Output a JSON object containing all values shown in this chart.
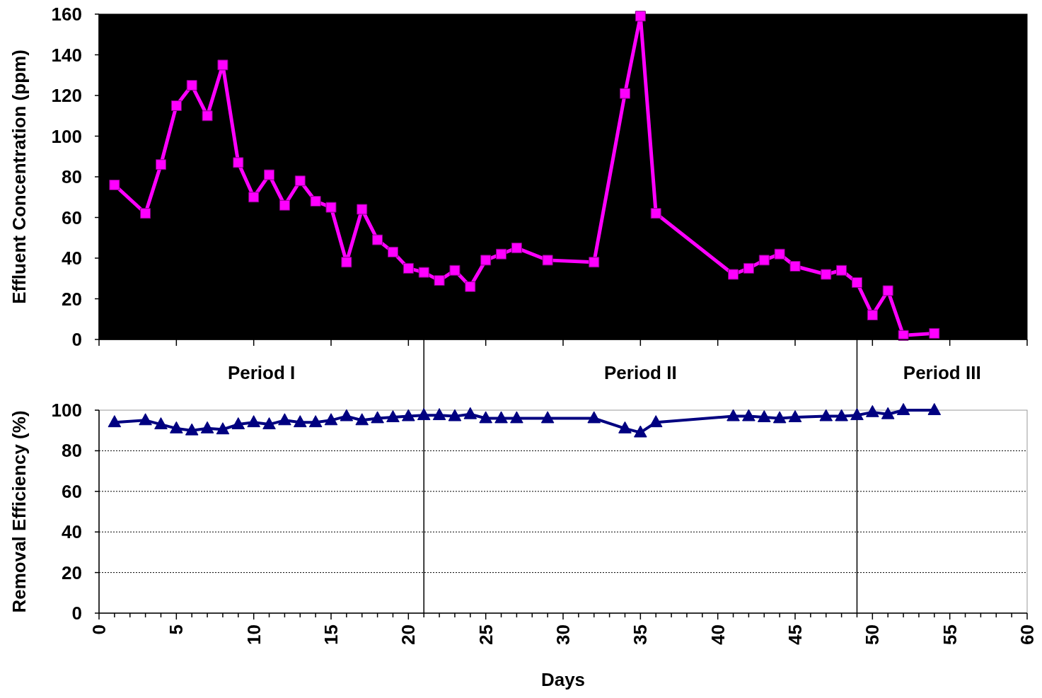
{
  "chart_data": [
    {
      "type": "line",
      "ylabel": "Effluent Concentration (ppm)",
      "marker": "square",
      "line_style": "solid",
      "grid": false,
      "tick_labels": "y",
      "xlim": [
        0,
        60
      ],
      "ylim": [
        0,
        160
      ],
      "xticks": [
        {
          "value": 0,
          "label": null
        },
        {
          "value": 5,
          "label": null
        },
        {
          "value": 10,
          "label": null
        },
        {
          "value": 15,
          "label": null
        },
        {
          "value": 20,
          "label": null
        },
        {
          "value": 25,
          "label": null
        },
        {
          "value": 30,
          "label": null
        },
        {
          "value": 35,
          "label": null
        },
        {
          "value": 40,
          "label": null
        },
        {
          "value": 45,
          "label": null
        },
        {
          "value": 50,
          "label": null
        },
        {
          "value": 55,
          "label": null
        },
        {
          "value": 60,
          "label": null
        }
      ],
      "yticks": [
        0,
        20,
        40,
        60,
        80,
        100,
        120,
        140,
        160
      ],
      "series": [
        {
          "color": "#ff00ff",
          "x": [
            1,
            3,
            4,
            5,
            6,
            7,
            8,
            9,
            10,
            11,
            12,
            13,
            14,
            15,
            16,
            17,
            18,
            19,
            20,
            21,
            22,
            23,
            24,
            25,
            26,
            27,
            29,
            32,
            34,
            35,
            36,
            41,
            42,
            43,
            44,
            45,
            47,
            48,
            49,
            50,
            51,
            52,
            54
          ],
          "values": [
            76,
            62,
            86,
            115,
            125,
            110,
            135,
            87,
            70,
            81,
            66,
            78,
            68,
            65,
            38,
            64,
            49,
            43,
            35,
            33,
            29,
            34,
            26,
            39,
            42,
            45,
            39,
            38,
            121,
            159,
            62,
            32,
            35,
            39,
            42,
            36,
            32,
            34,
            28,
            12,
            24,
            2,
            3
          ]
        }
      ]
    },
    {
      "type": "line",
      "ylabel": "Removal Efficiency (%)",
      "xlabel": "Days",
      "marker": "triangle",
      "line_style": "solid",
      "grid": "y",
      "xlim": [
        0,
        60
      ],
      "ylim": [
        0,
        100
      ],
      "xticks": [
        0,
        {
          "value": 1,
          "label": null
        },
        {
          "value": 2,
          "label": null
        },
        {
          "value": 3,
          "label": null
        },
        {
          "value": 4,
          "label": null
        },
        5,
        {
          "value": 6,
          "label": null
        },
        {
          "value": 7,
          "label": null
        },
        {
          "value": 8,
          "label": null
        },
        {
          "value": 9,
          "label": null
        },
        10,
        {
          "value": 11,
          "label": null
        },
        {
          "value": 12,
          "label": null
        },
        {
          "value": 13,
          "label": null
        },
        {
          "value": 14,
          "label": null
        },
        15,
        {
          "value": 16,
          "label": null
        },
        {
          "value": 17,
          "label": null
        },
        {
          "value": 18,
          "label": null
        },
        {
          "value": 19,
          "label": null
        },
        20,
        {
          "value": 21,
          "label": null
        },
        {
          "value": 22,
          "label": null
        },
        {
          "value": 23,
          "label": null
        },
        {
          "value": 24,
          "label": null
        },
        25,
        {
          "value": 26,
          "label": null
        },
        {
          "value": 27,
          "label": null
        },
        {
          "value": 28,
          "label": null
        },
        {
          "value": 29,
          "label": null
        },
        30,
        {
          "value": 31,
          "label": null
        },
        {
          "value": 32,
          "label": null
        },
        {
          "value": 33,
          "label": null
        },
        {
          "value": 34,
          "label": null
        },
        35,
        {
          "value": 36,
          "label": null
        },
        {
          "value": 37,
          "label": null
        },
        {
          "value": 38,
          "label": null
        },
        {
          "value": 39,
          "label": null
        },
        40,
        {
          "value": 41,
          "label": null
        },
        {
          "value": 42,
          "label": null
        },
        {
          "value": 43,
          "label": null
        },
        {
          "value": 44,
          "label": null
        },
        45,
        {
          "value": 46,
          "label": null
        },
        {
          "value": 47,
          "label": null
        },
        {
          "value": 48,
          "label": null
        },
        {
          "value": 49,
          "label": null
        },
        50,
        {
          "value": 51,
          "label": null
        },
        {
          "value": 52,
          "label": null
        },
        {
          "value": 53,
          "label": null
        },
        {
          "value": 54,
          "label": null
        },
        55,
        {
          "value": 56,
          "label": null
        },
        {
          "value": 57,
          "label": null
        },
        {
          "value": 58,
          "label": null
        },
        {
          "value": 59,
          "label": null
        },
        60
      ],
      "yticks": [
        0,
        20,
        40,
        60,
        80,
        100
      ],
      "ref_lines": [
        {
          "axis": "x",
          "value": 21,
          "color": "#000000"
        },
        {
          "axis": "x",
          "value": 49,
          "color": "#000000"
        }
      ],
      "annotations": [
        "Period I",
        "Period II",
        "Period III"
      ],
      "series": [
        {
          "color": "#000080",
          "x": [
            1,
            3,
            4,
            5,
            6,
            7,
            8,
            9,
            10,
            11,
            12,
            13,
            14,
            15,
            16,
            17,
            18,
            19,
            20,
            21,
            22,
            23,
            24,
            25,
            26,
            27,
            29,
            32,
            34,
            35,
            36,
            41,
            42,
            43,
            44,
            45,
            47,
            48,
            49,
            50,
            51,
            52,
            54
          ],
          "values": [
            94,
            95,
            93,
            91,
            90,
            91,
            90.5,
            93,
            94,
            93,
            95,
            94,
            94,
            95,
            97,
            95,
            96,
            96.5,
            97,
            97.5,
            97.5,
            97,
            98,
            96,
            96,
            96,
            96,
            96,
            91,
            89,
            94,
            97,
            97,
            96.5,
            96,
            96.5,
            97,
            97,
            97.5,
            99,
            98,
            100,
            100
          ]
        }
      ]
    }
  ]
}
